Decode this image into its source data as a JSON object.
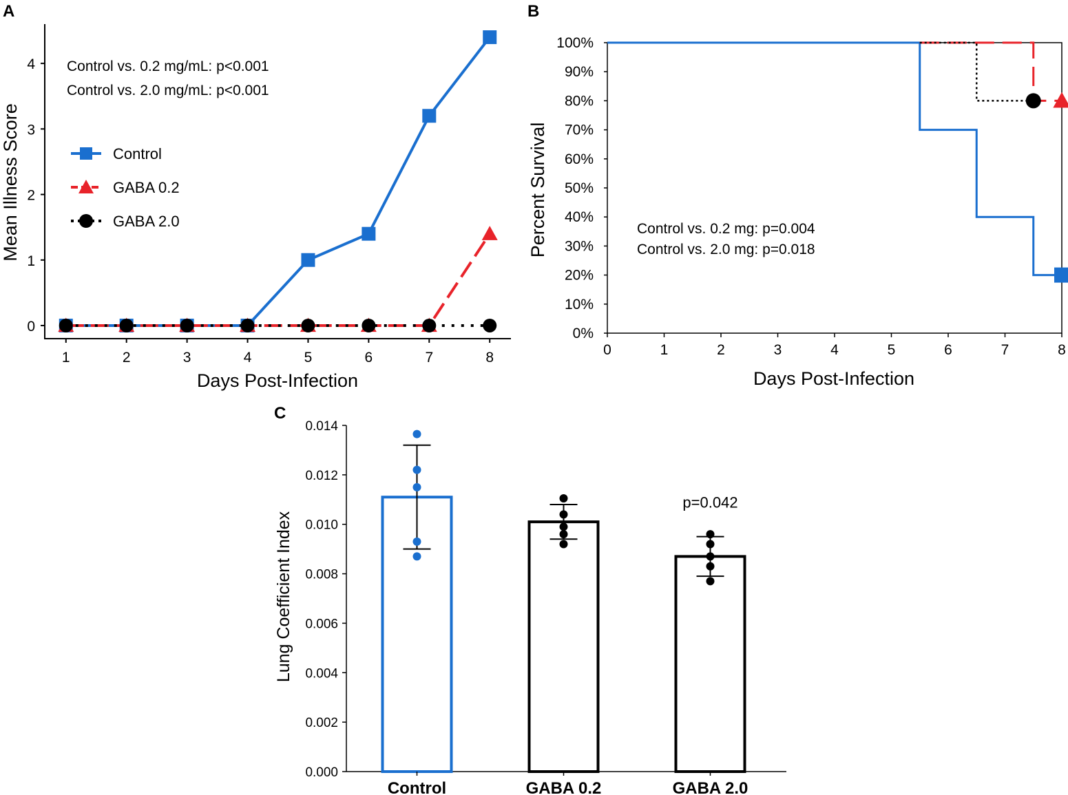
{
  "colors": {
    "control": "#1a6fcf",
    "gaba02": "#e8232a",
    "gaba20": "#000000"
  },
  "chart_data": [
    {
      "panel": "A",
      "type": "line",
      "x": [
        1,
        2,
        3,
        4,
        5,
        6,
        7,
        8
      ],
      "x_ticks": [
        "1",
        "2",
        "3",
        "4",
        "5",
        "6",
        "7",
        "8"
      ],
      "y_ticks": [
        "0",
        "1",
        "2",
        "3",
        "4"
      ],
      "xlim": [
        0.65,
        8.35
      ],
      "ylim": [
        -0.2,
        4.6
      ],
      "xlabel": "Days Post-Infection",
      "ylabel": "Mean Illness Score",
      "legend_position": "upper-left",
      "series": [
        {
          "name": "Control",
          "values": [
            0,
            0,
            0,
            0,
            1.0,
            1.4,
            3.2,
            4.4
          ],
          "color": "#1a6fcf",
          "marker": "square",
          "line": "solid"
        },
        {
          "name": "GABA 0.2",
          "values": [
            0,
            0,
            0,
            0,
            0,
            0,
            0,
            1.4
          ],
          "color": "#e8232a",
          "marker": "triangle",
          "line": "dashed"
        },
        {
          "name": "GABA 2.0",
          "values": [
            0,
            0,
            0,
            0,
            0,
            0,
            0,
            0
          ],
          "color": "#000000",
          "marker": "circle",
          "line": "dotted"
        }
      ],
      "annotations": [
        "Control vs. 0.2 mg/mL: p<0.001",
        "Control vs. 2.0 mg/mL: p<0.001"
      ]
    },
    {
      "panel": "B",
      "type": "line",
      "subtype": "step-survival",
      "x_ticks": [
        "0",
        "1",
        "2",
        "3",
        "4",
        "5",
        "6",
        "7",
        "8"
      ],
      "y_ticks": [
        "0%",
        "10%",
        "20%",
        "30%",
        "40%",
        "50%",
        "60%",
        "70%",
        "80%",
        "90%",
        "100%"
      ],
      "xlim": [
        0,
        8
      ],
      "ylim": [
        0,
        100
      ],
      "xlabel": "Days Post-Infection",
      "ylabel": "Percent Survival",
      "series": [
        {
          "name": "Control",
          "x": [
            0,
            5.5,
            5.5,
            6.5,
            6.5,
            7.5,
            7.5,
            8
          ],
          "values": [
            100,
            100,
            70,
            70,
            40,
            40,
            20,
            20
          ],
          "color": "#1a6fcf",
          "marker": "square",
          "line": "solid",
          "end_marker": [
            8,
            20
          ]
        },
        {
          "name": "GABA 0.2",
          "x": [
            5.5,
            7.5,
            7.5,
            8
          ],
          "values": [
            100,
            100,
            80,
            80
          ],
          "color": "#e8232a",
          "marker": "triangle",
          "line": "dashed",
          "end_marker": [
            8,
            80
          ]
        },
        {
          "name": "GABA 2.0",
          "x": [
            5.5,
            6.5,
            6.5,
            7.5
          ],
          "values": [
            100,
            100,
            80,
            80
          ],
          "color": "#000000",
          "marker": "circle",
          "line": "dotted",
          "end_marker": [
            7.5,
            80
          ]
        }
      ],
      "annotations": [
        "Control vs. 0.2 mg: p=0.004",
        "Control vs. 2.0 mg: p=0.018"
      ]
    },
    {
      "panel": "C",
      "type": "bar",
      "categories": [
        "Control",
        "GABA 0.2",
        "GABA 2.0"
      ],
      "values": [
        0.0111,
        0.0101,
        0.0087
      ],
      "errors": [
        0.0021,
        0.0007,
        0.0008
      ],
      "points": [
        [
          0.01365,
          0.0122,
          0.0115,
          0.0093,
          0.0087
        ],
        [
          0.01105,
          0.0104,
          0.0099,
          0.0096,
          0.0092
        ],
        [
          0.0096,
          0.0092,
          0.0087,
          0.0083,
          0.0077
        ]
      ],
      "bar_colors": [
        "#1a6fcf",
        "#000000",
        "#000000"
      ],
      "y_ticks": [
        "0.000",
        "0.002",
        "0.004",
        "0.006",
        "0.008",
        "0.010",
        "0.012",
        "0.014"
      ],
      "ylim": [
        0,
        0.014
      ],
      "xlabel": "",
      "ylabel": "Lung Coefficient Index",
      "annotations": [
        "",
        "",
        "p=0.042"
      ]
    }
  ]
}
